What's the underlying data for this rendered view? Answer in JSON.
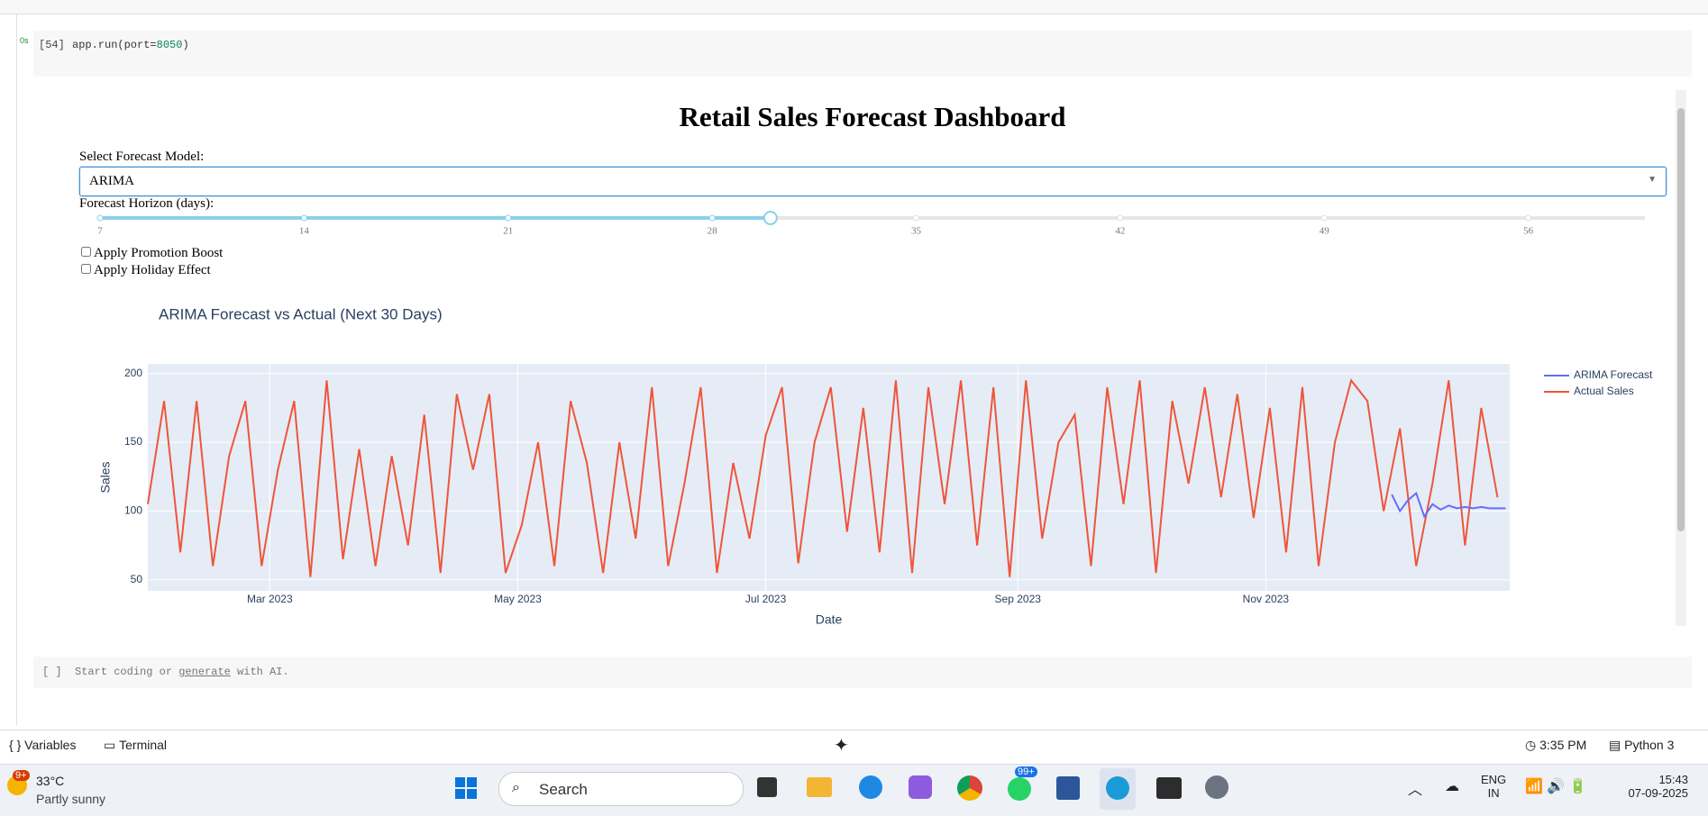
{
  "notebook": {
    "cell_count": "[54]",
    "exec_time": "0s",
    "code": [
      "app.run(port=",
      "8050",
      ")"
    ],
    "next_cell": {
      "prompt": "[ ]",
      "text_before": "Start coding or ",
      "link": "generate",
      "text_after": " with AI."
    }
  },
  "dashboard": {
    "title": "Retail Sales Forecast Dashboard",
    "model_label": "Select Forecast Model:",
    "model_value": "ARIMA",
    "horizon_label": "Forecast Horizon (days):",
    "slider": {
      "marks": [
        7,
        14,
        21,
        28,
        35,
        42,
        49,
        56
      ],
      "min": 7,
      "max": 60,
      "value": 30
    },
    "checkboxes": [
      "Apply Promotion Boost",
      "Apply Holiday Effect"
    ]
  },
  "chart_data": {
    "type": "line",
    "title": "ARIMA Forecast vs Actual (Next 30 Days)",
    "x_label": "Date",
    "y_label": "Sales",
    "xlim": [
      30,
      365
    ],
    "xticks": [
      {
        "value": 60,
        "label": "Mar 2023"
      },
      {
        "value": 121,
        "label": "May 2023"
      },
      {
        "value": 182,
        "label": "Jul 2023"
      },
      {
        "value": 244,
        "label": "Sep 2023"
      },
      {
        "value": 305,
        "label": "Nov 2023"
      }
    ],
    "ylim": [
      42,
      207
    ],
    "yticks": [
      50,
      100,
      150,
      200
    ],
    "grid": true,
    "legend": "right",
    "series": [
      {
        "name": "ARIMA Forecast",
        "color": "#636efa",
        "x": [
          336,
          338,
          340,
          342,
          344,
          346,
          348,
          350,
          352,
          354,
          356,
          358,
          360,
          362,
          364
        ],
        "values": [
          112,
          100,
          108,
          113,
          96,
          105,
          101,
          104,
          102,
          103,
          102,
          103,
          102,
          102,
          102
        ]
      },
      {
        "name": "Actual Sales",
        "color": "#ef553b",
        "x": [
          30,
          34,
          38,
          42,
          46,
          50,
          54,
          58,
          62,
          66,
          70,
          74,
          78,
          82,
          86,
          90,
          94,
          98,
          102,
          106,
          110,
          114,
          118,
          122,
          126,
          130,
          134,
          138,
          142,
          146,
          150,
          154,
          158,
          162,
          166,
          170,
          174,
          178,
          182,
          186,
          190,
          194,
          198,
          202,
          206,
          210,
          214,
          218,
          222,
          226,
          230,
          234,
          238,
          242,
          246,
          250,
          254,
          258,
          262,
          266,
          270,
          274,
          278,
          282,
          286,
          290,
          294,
          298,
          302,
          306,
          310,
          314,
          318,
          322,
          326,
          330,
          334,
          338,
          342,
          346,
          350,
          354,
          358,
          362
        ],
        "values": [
          105,
          180,
          70,
          180,
          60,
          140,
          180,
          60,
          130,
          180,
          52,
          195,
          65,
          145,
          60,
          140,
          75,
          170,
          55,
          185,
          130,
          185,
          55,
          90,
          150,
          60,
          180,
          135,
          55,
          150,
          80,
          190,
          60,
          120,
          190,
          55,
          135,
          80,
          155,
          190,
          62,
          150,
          190,
          85,
          175,
          70,
          195,
          55,
          190,
          105,
          195,
          75,
          190,
          52,
          195,
          80,
          150,
          170,
          60,
          190,
          105,
          195,
          55,
          180,
          120,
          190,
          110,
          185,
          95,
          175,
          70,
          190,
          60,
          150,
          195,
          180,
          100,
          160,
          60,
          120,
          195,
          75,
          175,
          110
        ]
      }
    ]
  },
  "status_bar": {
    "variables": "Variables",
    "terminal": "Terminal",
    "time": "3:35 PM",
    "kernel": "Python 3"
  },
  "taskbar": {
    "weather_badge": "9+",
    "temperature": "33°C",
    "weather": "Partly sunny",
    "search": "Search",
    "whatsapp_badge": "99+",
    "lang": "ENG",
    "region": "IN",
    "time": "15:43",
    "date": "07-09-2025"
  }
}
